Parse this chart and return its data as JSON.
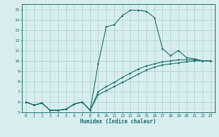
{
  "xlabel": "Humidex (Indice chaleur)",
  "bg_color": "#d8eeee",
  "grid_color": "#aacccc",
  "line_color": "#1a6b6b",
  "xlim": [
    -0.5,
    23.5
  ],
  "ylim": [
    5,
    15.5
  ],
  "xticks": [
    0,
    1,
    2,
    3,
    4,
    5,
    6,
    7,
    8,
    9,
    10,
    11,
    12,
    13,
    14,
    15,
    16,
    17,
    18,
    19,
    20,
    21,
    22,
    23
  ],
  "yticks": [
    5,
    6,
    7,
    8,
    9,
    10,
    11,
    12,
    13,
    14,
    15
  ],
  "line1_x": [
    0,
    1,
    2,
    3,
    4,
    5,
    6,
    7,
    8,
    9,
    10,
    11,
    12,
    13,
    14,
    15,
    16,
    17,
    18,
    19,
    20,
    21,
    22,
    23
  ],
  "line1_y": [
    6.0,
    5.7,
    5.9,
    5.2,
    5.2,
    5.3,
    5.8,
    6.0,
    5.2,
    9.7,
    13.3,
    13.5,
    14.4,
    14.9,
    14.9,
    14.8,
    14.2,
    11.2,
    10.5,
    11.0,
    10.3,
    10.2,
    10.0,
    10.0
  ],
  "line2_x": [
    0,
    1,
    2,
    3,
    4,
    5,
    6,
    7,
    8,
    9,
    10,
    11,
    12,
    13,
    14,
    15,
    16,
    17,
    18,
    19,
    20,
    21,
    22,
    23
  ],
  "line2_y": [
    6.0,
    5.7,
    5.9,
    5.2,
    5.2,
    5.3,
    5.8,
    6.0,
    5.2,
    6.7,
    7.1,
    7.5,
    7.9,
    8.3,
    8.7,
    9.1,
    9.4,
    9.6,
    9.7,
    9.8,
    9.9,
    10.0,
    10.0,
    10.0
  ],
  "line3_x": [
    0,
    1,
    2,
    3,
    4,
    5,
    6,
    7,
    8,
    9,
    10,
    11,
    12,
    13,
    14,
    15,
    16,
    17,
    18,
    19,
    20,
    21,
    22,
    23
  ],
  "line3_y": [
    6.0,
    5.7,
    5.9,
    5.2,
    5.2,
    5.3,
    5.8,
    6.0,
    5.2,
    7.0,
    7.5,
    7.9,
    8.4,
    8.8,
    9.2,
    9.5,
    9.7,
    9.9,
    10.0,
    10.1,
    10.1,
    10.1,
    10.0,
    10.0
  ]
}
